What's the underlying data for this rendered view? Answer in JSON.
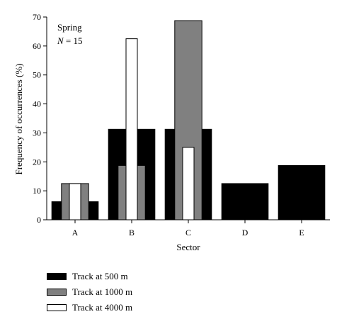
{
  "chart_data": {
    "type": "bar",
    "xlabel": "Sector",
    "ylabel": "Frequency of occurrences (%)",
    "ylim": [
      0,
      70
    ],
    "yticks": [
      0,
      10,
      20,
      30,
      40,
      50,
      60,
      70
    ],
    "categories": [
      "A",
      "B",
      "C",
      "D",
      "E"
    ],
    "annotation": {
      "season": "Spring",
      "n_prefix": "N",
      "n_value": " = 15"
    },
    "series": [
      {
        "name": "Track at 500 m",
        "color": "#000000",
        "values": [
          6.25,
          31.25,
          31.25,
          12.5,
          18.75
        ]
      },
      {
        "name": "Track at 1000 m",
        "color": "#808080",
        "values": [
          12.5,
          18.75,
          68.75,
          0,
          0
        ]
      },
      {
        "name": "Track at 4000 m",
        "color": "#ffffff",
        "values": [
          12.5,
          62.5,
          25,
          0,
          0
        ]
      }
    ],
    "legend_position": "bottom-left"
  }
}
